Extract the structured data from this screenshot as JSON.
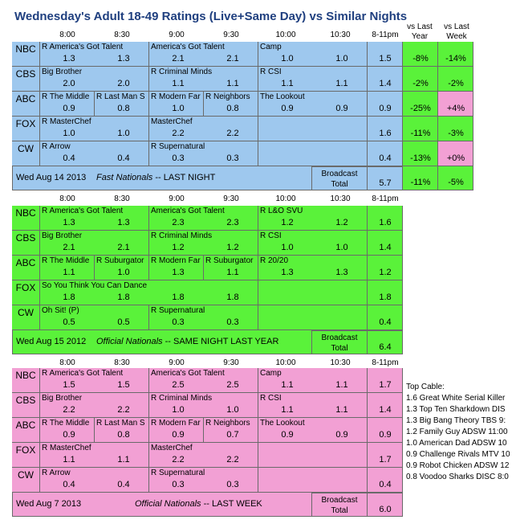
{
  "title": "Wednesday's Adult 18-49 Ratings (Live+Same Day) vs Similar Nights",
  "time_slots": [
    "8:00",
    "8:30",
    "9:00",
    "9:30",
    "10:00",
    "10:30",
    "8-11pm"
  ],
  "extra_headers": [
    "vs Last Year",
    "vs Last Week"
  ],
  "colors": {
    "blue": "#9ec8ee",
    "green": "#5af23a",
    "pink": "#f2a0d4",
    "header_text": "#1f3f7f"
  },
  "blocks": [
    {
      "id": "current",
      "color": "blue",
      "date": "Wed Aug 14 2013",
      "label_prefix": "Fast Nationals",
      "label_suffix": " --  LAST NIGHT",
      "broadcast_label": "Broadcast Total",
      "broadcast_total": "5.7",
      "footer_vs_year": "-11%",
      "footer_vs_week": "-5%",
      "networks": [
        {
          "net": "NBC",
          "shows": [
            {
              "name": "R America's Got Talent",
              "span": 2
            },
            {
              "name": "America's Got Talent",
              "span": 2
            },
            {
              "name": "Camp",
              "span": 2
            }
          ],
          "ratings": [
            "1.3",
            "1.3",
            "2.1",
            "2.1",
            "1.0",
            "1.0"
          ],
          "total": "1.5",
          "vs_year": "-8%",
          "vs_week": "-14%"
        },
        {
          "net": "CBS",
          "shows": [
            {
              "name": "Big Brother",
              "span": 2
            },
            {
              "name": "R Criminal Minds",
              "span": 2
            },
            {
              "name": "R CSI",
              "span": 2
            }
          ],
          "ratings": [
            "2.0",
            "2.0",
            "1.1",
            "1.1",
            "1.1",
            "1.1"
          ],
          "total": "1.4",
          "vs_year": "-2%",
          "vs_week": "-2%"
        },
        {
          "net": "ABC",
          "shows": [
            {
              "name": "R The Middle",
              "span": 1
            },
            {
              "name": "R Last Man S",
              "span": 1
            },
            {
              "name": "R Modern Far",
              "span": 1
            },
            {
              "name": "R Neighbors",
              "span": 1
            },
            {
              "name": "The Lookout",
              "span": 2
            }
          ],
          "ratings": [
            "0.9",
            "0.8",
            "1.0",
            "0.8",
            "0.9",
            "0.9"
          ],
          "total": "0.9",
          "vs_year": "-25%",
          "vs_week": "+4%"
        },
        {
          "net": "FOX",
          "shows": [
            {
              "name": "R MasterChef",
              "span": 2
            },
            {
              "name": "MasterChef",
              "span": 2
            },
            {
              "name": "",
              "span": 2
            }
          ],
          "ratings": [
            "1.0",
            "1.0",
            "2.2",
            "2.2",
            "",
            ""
          ],
          "total": "1.6",
          "vs_year": "-11%",
          "vs_week": "-3%"
        },
        {
          "net": "CW",
          "shows": [
            {
              "name": "R Arrow",
              "span": 2
            },
            {
              "name": "R Supernatural",
              "span": 2
            },
            {
              "name": "",
              "span": 2
            }
          ],
          "ratings": [
            "0.4",
            "0.4",
            "0.3",
            "0.3",
            "",
            ""
          ],
          "total": "0.4",
          "vs_year": "-13%",
          "vs_week": "+0%"
        }
      ]
    },
    {
      "id": "last-year",
      "color": "green",
      "date": "Wed Aug 15 2012",
      "label_prefix": "Official Nationals",
      "label_suffix": " --  SAME NIGHT LAST YEAR",
      "broadcast_label": "Broadcast Total",
      "broadcast_total": "6.4",
      "networks": [
        {
          "net": "NBC",
          "shows": [
            {
              "name": "R America's Got Talent",
              "span": 2
            },
            {
              "name": "America's Got Talent",
              "span": 2
            },
            {
              "name": "R L&O SVU",
              "span": 2
            }
          ],
          "ratings": [
            "1.3",
            "1.3",
            "2.3",
            "2.3",
            "1.2",
            "1.2"
          ],
          "total": "1.6"
        },
        {
          "net": "CBS",
          "shows": [
            {
              "name": "Big Brother",
              "span": 2
            },
            {
              "name": "R Criminal Minds",
              "span": 2
            },
            {
              "name": "R CSI",
              "span": 2
            }
          ],
          "ratings": [
            "2.1",
            "2.1",
            "1.2",
            "1.2",
            "1.0",
            "1.0"
          ],
          "total": "1.4"
        },
        {
          "net": "ABC",
          "shows": [
            {
              "name": "R The Middle",
              "span": 1
            },
            {
              "name": "R Suburgator",
              "span": 1
            },
            {
              "name": "R Modern Far",
              "span": 1
            },
            {
              "name": "R Suburgator",
              "span": 1
            },
            {
              "name": "R 20/20",
              "span": 2
            }
          ],
          "ratings": [
            "1.1",
            "1.0",
            "1.3",
            "1.1",
            "1.3",
            "1.3"
          ],
          "total": "1.2"
        },
        {
          "net": "FOX",
          "shows": [
            {
              "name": "So You Think You Can Dance",
              "span": 4
            },
            {
              "name": "",
              "span": 2
            }
          ],
          "ratings": [
            "1.8",
            "1.8",
            "1.8",
            "1.8",
            "",
            ""
          ],
          "total": "1.8"
        },
        {
          "net": "CW",
          "shows": [
            {
              "name": "Oh Sit! (P)",
              "span": 2
            },
            {
              "name": "R Supernatural",
              "span": 2
            },
            {
              "name": "",
              "span": 2
            }
          ],
          "ratings": [
            "0.5",
            "0.5",
            "0.3",
            "0.3",
            "",
            ""
          ],
          "total": "0.4"
        }
      ]
    },
    {
      "id": "last-week",
      "color": "pink",
      "date": "Wed Aug 7 2013",
      "label_prefix": "Official Nationals",
      "label_suffix": " -- LAST WEEK",
      "broadcast_label": "Broadcast Total",
      "broadcast_total": "6.0",
      "networks": [
        {
          "net": "NBC",
          "shows": [
            {
              "name": "R America's Got Talent",
              "span": 2
            },
            {
              "name": "America's Got Talent",
              "span": 2
            },
            {
              "name": "Camp",
              "span": 2
            }
          ],
          "ratings": [
            "1.5",
            "1.5",
            "2.5",
            "2.5",
            "1.1",
            "1.1"
          ],
          "total": "1.7"
        },
        {
          "net": "CBS",
          "shows": [
            {
              "name": "Big Brother",
              "span": 2
            },
            {
              "name": "R Criminal Minds",
              "span": 2
            },
            {
              "name": "R CSI",
              "span": 2
            }
          ],
          "ratings": [
            "2.2",
            "2.2",
            "1.0",
            "1.0",
            "1.1",
            "1.1"
          ],
          "total": "1.4"
        },
        {
          "net": "ABC",
          "shows": [
            {
              "name": "R The Middle",
              "span": 1
            },
            {
              "name": "R Last Man S",
              "span": 1
            },
            {
              "name": "R Modern Far",
              "span": 1
            },
            {
              "name": "R Neighbors",
              "span": 1
            },
            {
              "name": "The Lookout",
              "span": 2
            }
          ],
          "ratings": [
            "0.9",
            "0.8",
            "0.9",
            "0.7",
            "0.9",
            "0.9"
          ],
          "total": "0.9"
        },
        {
          "net": "FOX",
          "shows": [
            {
              "name": "R MasterChef",
              "span": 2
            },
            {
              "name": "MasterChef",
              "span": 2
            },
            {
              "name": "",
              "span": 2
            }
          ],
          "ratings": [
            "1.1",
            "1.1",
            "2.2",
            "2.2",
            "",
            ""
          ],
          "total": "1.7"
        },
        {
          "net": "CW",
          "shows": [
            {
              "name": "R Arrow",
              "span": 2
            },
            {
              "name": "R Supernatural",
              "span": 2
            },
            {
              "name": "",
              "span": 2
            }
          ],
          "ratings": [
            "0.4",
            "0.4",
            "0.3",
            "0.3",
            "",
            ""
          ],
          "total": "0.4"
        }
      ]
    }
  ],
  "top_cable": {
    "title": "Top Cable:",
    "items": [
      "1.6 Great White Serial Killer",
      "1.3 Top Ten Sharkdown DIS",
      "1.3 Big Bang Theory TBS 9:",
      "1.2 Family Guy ADSW 11:00",
      "1.0 American Dad ADSW 10",
      "0.9 Challenge Rivals MTV 10",
      "0.9 Robot Chicken ADSW 12",
      "0.8 Voodoo Sharks DISC 8:0"
    ]
  }
}
